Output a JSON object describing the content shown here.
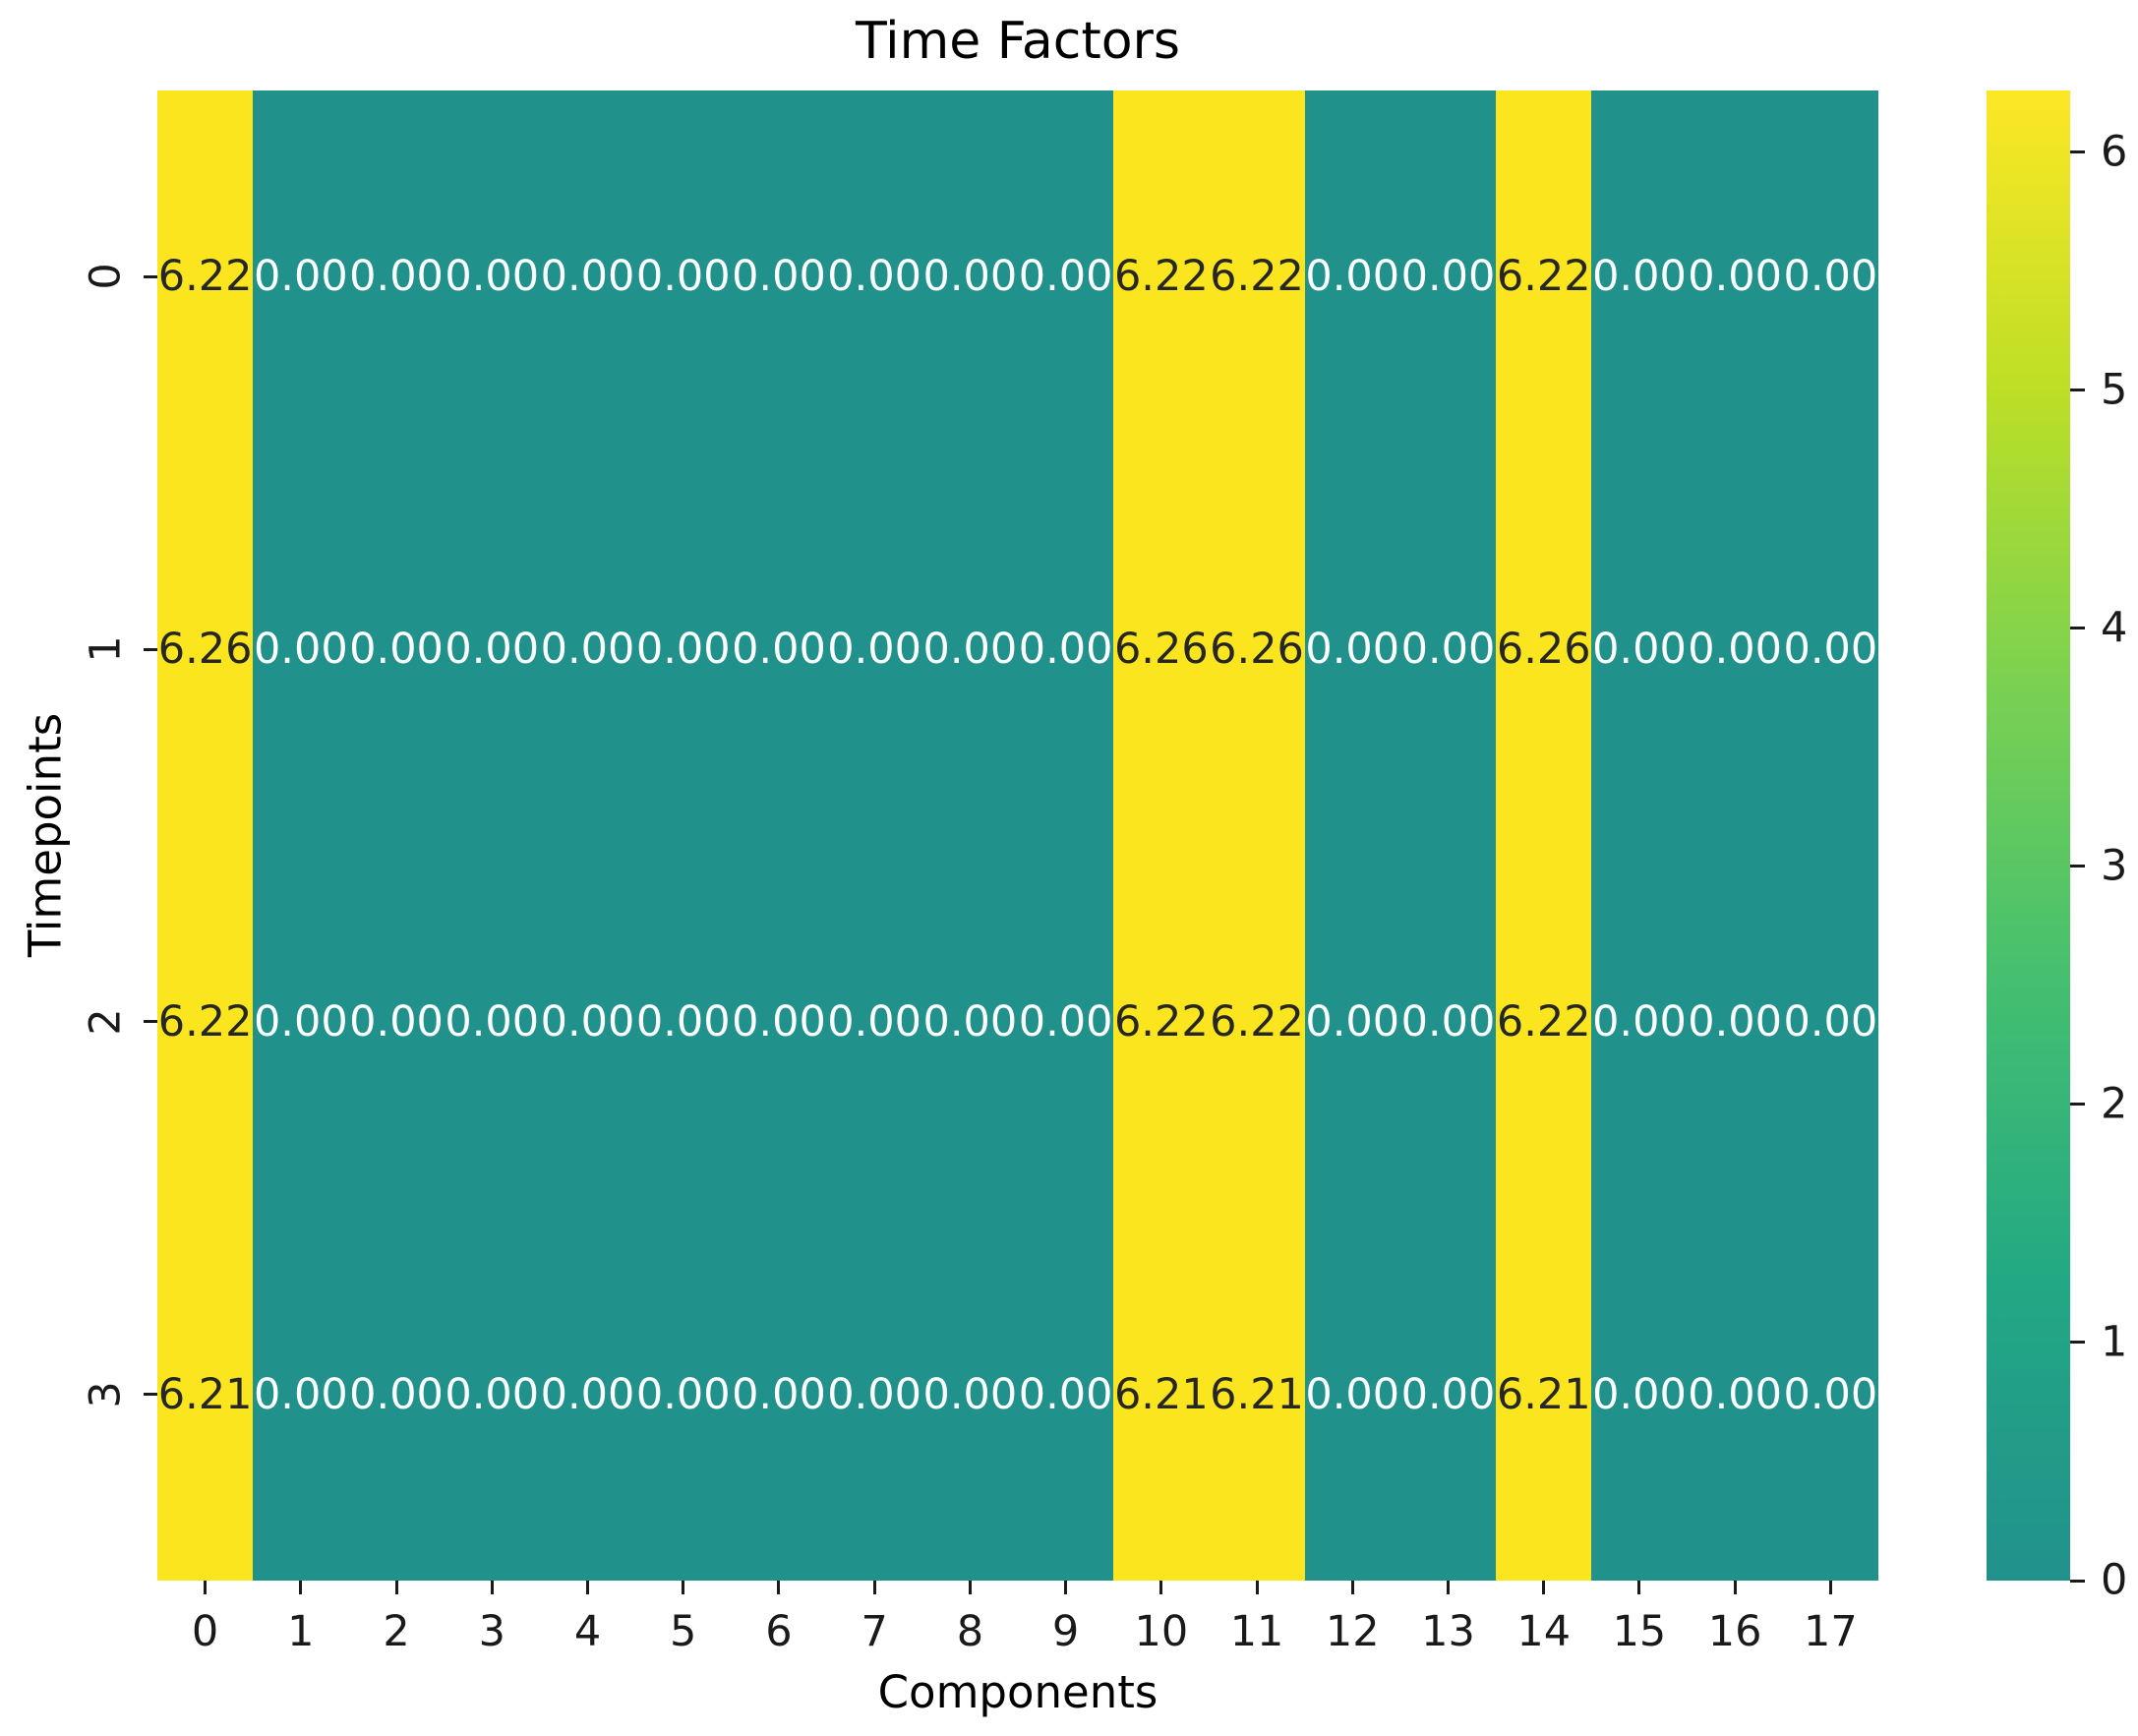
{
  "chart_data": {
    "type": "heatmap",
    "title": "Time Factors",
    "xlabel": "Components",
    "ylabel": "Timepoints",
    "x_ticklabels": [
      "0",
      "1",
      "2",
      "3",
      "4",
      "5",
      "6",
      "7",
      "8",
      "9",
      "10",
      "11",
      "12",
      "13",
      "14",
      "15",
      "16",
      "17"
    ],
    "y_ticklabels": [
      "0",
      "1",
      "2",
      "3"
    ],
    "values": [
      [
        6.22,
        0.0,
        0.0,
        0.0,
        0.0,
        0.0,
        0.0,
        0.0,
        0.0,
        0.0,
        6.22,
        6.22,
        0.0,
        0.0,
        6.22,
        0.0,
        0.0,
        0.0
      ],
      [
        6.26,
        0.0,
        0.0,
        0.0,
        0.0,
        0.0,
        0.0,
        0.0,
        0.0,
        0.0,
        6.26,
        6.26,
        0.0,
        0.0,
        6.26,
        0.0,
        0.0,
        0.0
      ],
      [
        6.22,
        0.0,
        0.0,
        0.0,
        0.0,
        0.0,
        0.0,
        0.0,
        0.0,
        0.0,
        6.22,
        6.22,
        0.0,
        0.0,
        6.22,
        0.0,
        0.0,
        0.0
      ],
      [
        6.21,
        0.0,
        0.0,
        0.0,
        0.0,
        0.0,
        0.0,
        0.0,
        0.0,
        0.0,
        6.21,
        6.21,
        0.0,
        0.0,
        6.21,
        0.0,
        0.0,
        0.0
      ]
    ],
    "annot_decimals": 2,
    "grid": false,
    "legend_position": "right-colorbar",
    "colorbar": {
      "vmin": 0,
      "vmax": 6.26,
      "tick_values": [
        0,
        1,
        2,
        3,
        4,
        5,
        6
      ],
      "tick_labels": [
        "0",
        "1",
        "2",
        "3",
        "4",
        "5",
        "6"
      ],
      "gradient_stops_bottom_to_top": [
        "#21918c",
        "#22a884",
        "#44bf70",
        "#7ad151",
        "#bddf26",
        "#fde725"
      ]
    },
    "colors": {
      "cell_high": "#fbe51e",
      "cell_low": "#21918c",
      "annot_on_high": "#262626",
      "annot_on_low": "#ffffff",
      "high_threshold": 3
    }
  }
}
